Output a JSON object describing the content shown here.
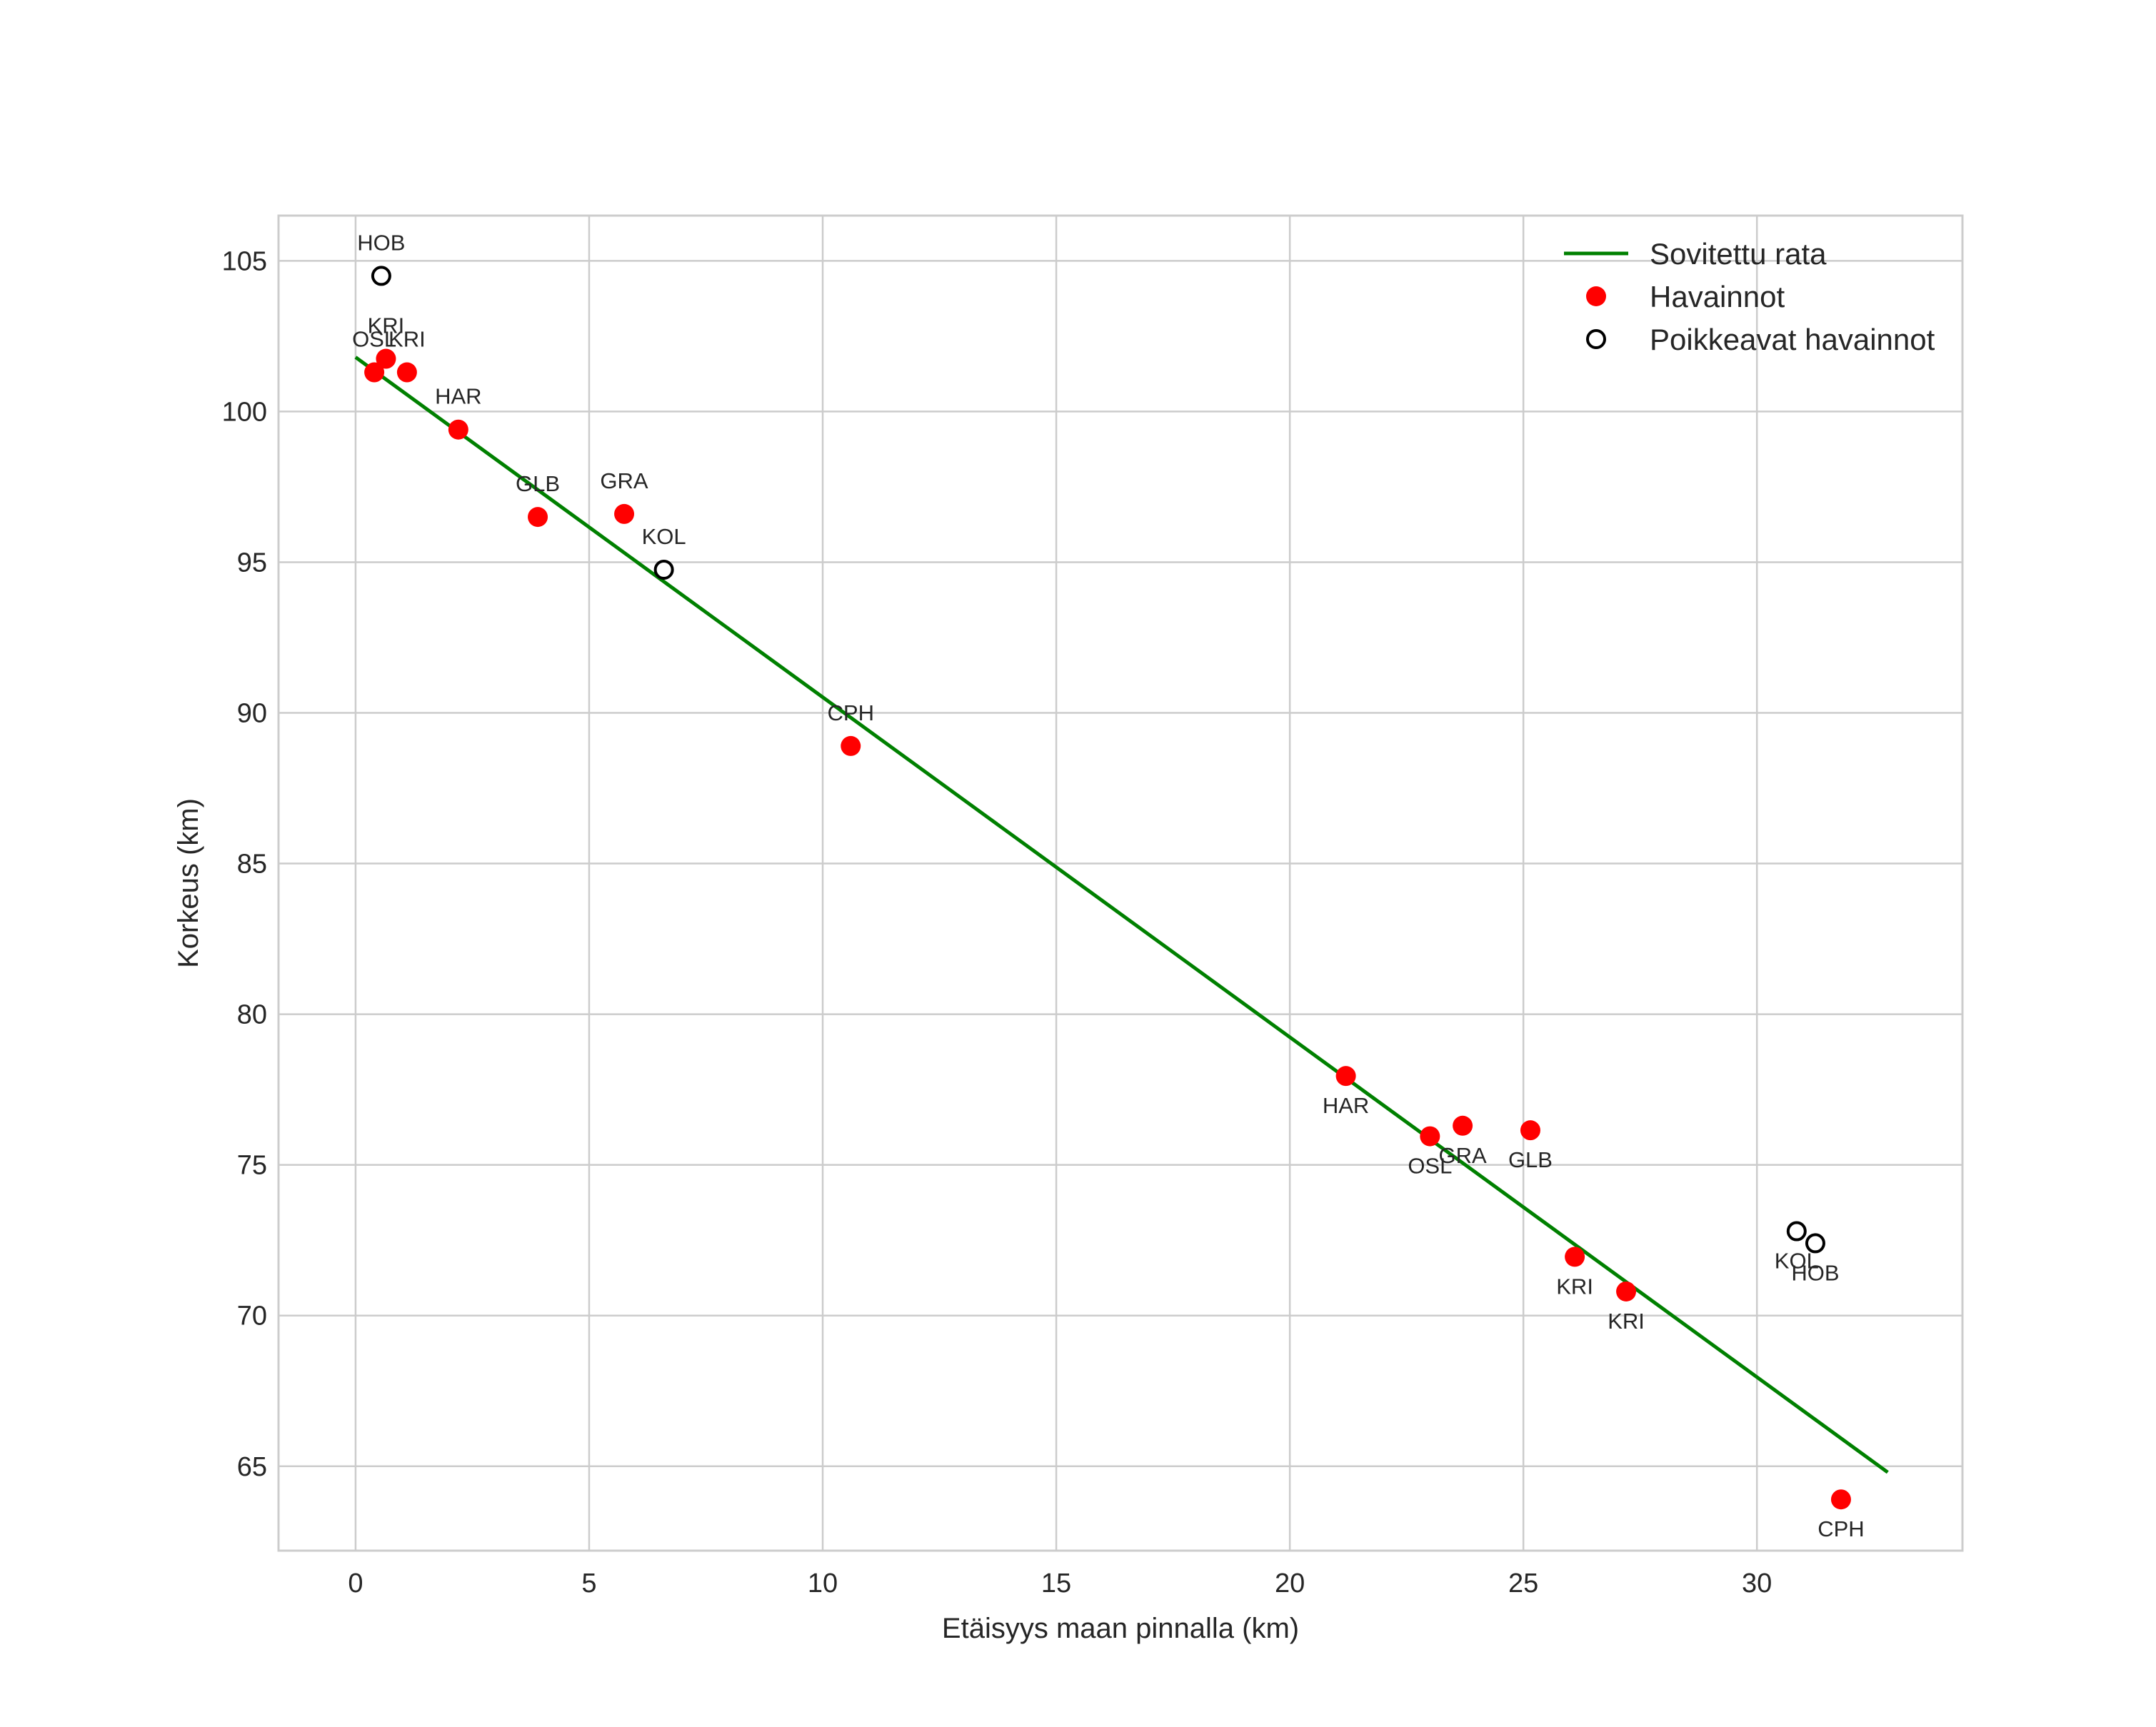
{
  "chart_data": {
    "type": "scatter",
    "title": "",
    "xlabel": "Etäisyys maan pinnalla (km)",
    "ylabel": "Korkeus (km)",
    "xlim": [
      -1.65,
      34.4
    ],
    "ylim": [
      62.2,
      106.5
    ],
    "xticks": [
      0,
      5,
      10,
      15,
      20,
      25,
      30
    ],
    "yticks": [
      65,
      70,
      75,
      80,
      85,
      90,
      95,
      100,
      105
    ],
    "grid": true,
    "legend_position": "top-right",
    "colors": {
      "fit": "#008000",
      "observation": "#ff0000",
      "outlier_edge": "#000000",
      "grid": "#cccccc",
      "frame": "#cccccc"
    },
    "series": [
      {
        "name": "Sovitettu rata",
        "kind": "line",
        "x": [
          0.0,
          32.8
        ],
        "y": [
          101.8,
          64.8
        ]
      },
      {
        "name": "Havainnot",
        "kind": "points",
        "points": [
          {
            "x": 0.4,
            "y": 101.3,
            "label": "OSL",
            "label_pos": "above"
          },
          {
            "x": 0.65,
            "y": 101.75,
            "label": "KRI",
            "label_pos": "above"
          },
          {
            "x": 1.1,
            "y": 101.3,
            "label": "KRI",
            "label_pos": "above"
          },
          {
            "x": 2.2,
            "y": 99.4,
            "label": "HAR",
            "label_pos": "above"
          },
          {
            "x": 3.9,
            "y": 96.5,
            "label": "GLB",
            "label_pos": "above"
          },
          {
            "x": 5.75,
            "y": 96.6,
            "label": "GRA",
            "label_pos": "above"
          },
          {
            "x": 10.6,
            "y": 88.9,
            "label": "CPH",
            "label_pos": "above"
          },
          {
            "x": 21.2,
            "y": 77.95,
            "label": "HAR",
            "label_pos": "below"
          },
          {
            "x": 23.0,
            "y": 75.95,
            "label": "OSL",
            "label_pos": "below"
          },
          {
            "x": 23.7,
            "y": 76.3,
            "label": "GRA",
            "label_pos": "below"
          },
          {
            "x": 25.15,
            "y": 76.15,
            "label": "GLB",
            "label_pos": "below"
          },
          {
            "x": 26.1,
            "y": 71.95,
            "label": "KRI",
            "label_pos": "below"
          },
          {
            "x": 27.2,
            "y": 70.8,
            "label": "KRI",
            "label_pos": "below"
          },
          {
            "x": 31.8,
            "y": 63.9,
            "label": "CPH",
            "label_pos": "below"
          }
        ]
      },
      {
        "name": "Poikkeavat havainnot",
        "kind": "points",
        "points": [
          {
            "x": 0.55,
            "y": 104.5,
            "label": "HOB",
            "label_pos": "above"
          },
          {
            "x": 6.6,
            "y": 94.75,
            "label": "KOL",
            "label_pos": "above"
          },
          {
            "x": 30.85,
            "y": 72.8,
            "label": "KOL",
            "label_pos": "below"
          },
          {
            "x": 31.25,
            "y": 72.4,
            "label": "HOB",
            "label_pos": "below"
          }
        ]
      }
    ]
  }
}
